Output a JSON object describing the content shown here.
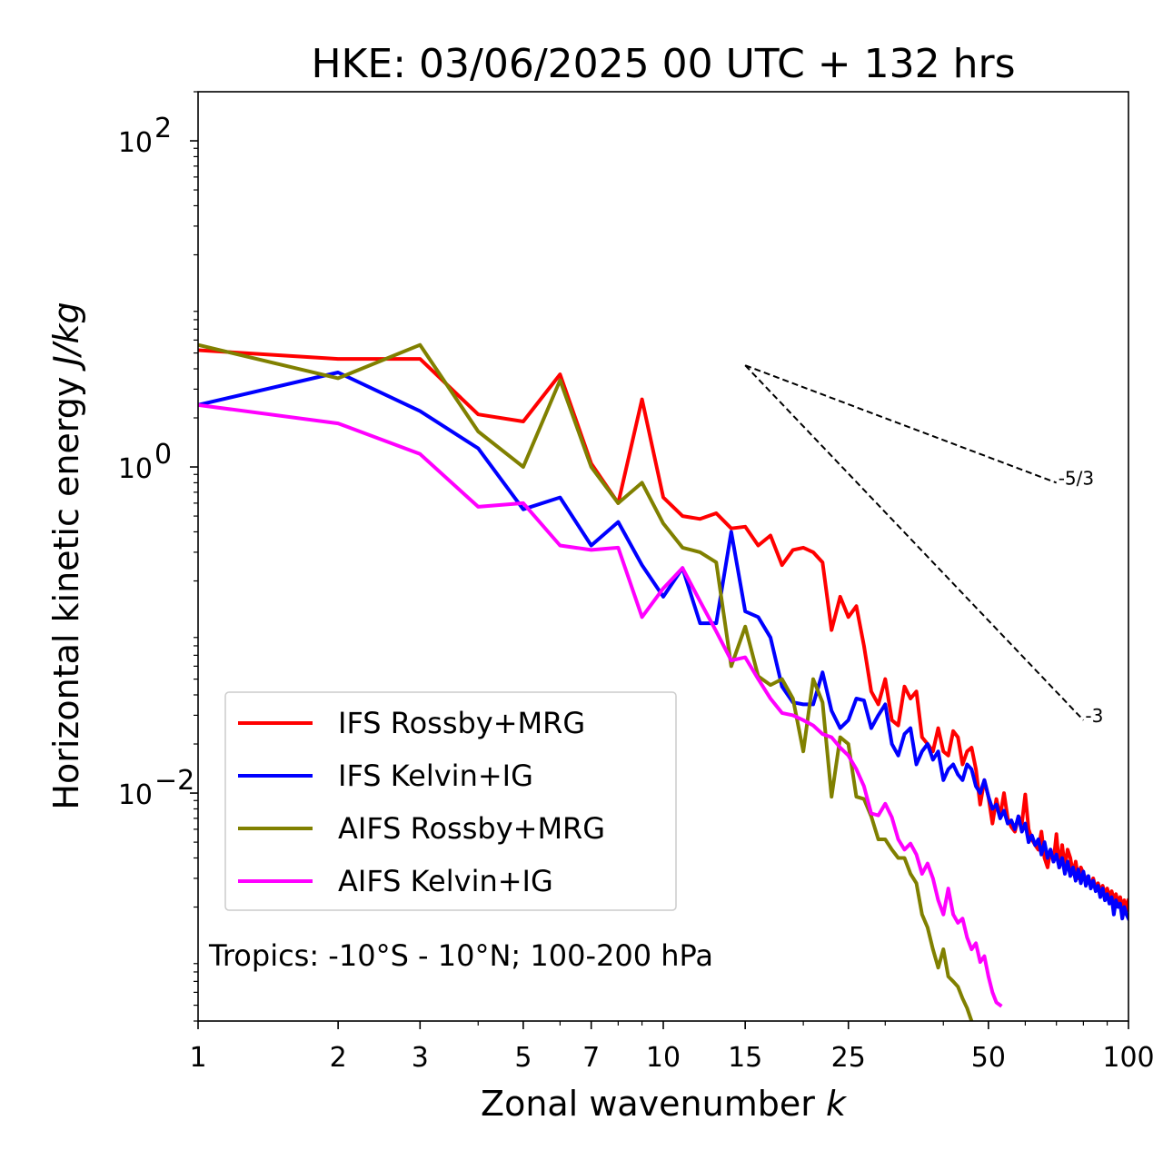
{
  "chart_data": {
    "type": "line",
    "title": "HKE: 03/06/2025 00 UTC + 132 hrs",
    "xlabel": "Zonal wavenumber k",
    "ylabel": "Horizontal kinetic energy J/kg",
    "xscale": "log",
    "yscale": "log",
    "xlim": [
      1,
      100
    ],
    "ylim": [
      0.0004,
      200
    ],
    "x_ticks": [
      1,
      2,
      3,
      5,
      7,
      10,
      15,
      25,
      50,
      100
    ],
    "x_tick_labels": [
      "1",
      "2",
      "3",
      "5",
      "7",
      "10",
      "15",
      "25",
      "50",
      "100"
    ],
    "y_ticks": [
      0.01,
      1,
      100
    ],
    "y_tick_labels": [
      "10",
      "10",
      "10"
    ],
    "y_tick_exponents": [
      "−2",
      "0",
      "2"
    ],
    "grid": false,
    "legend_position": "lower-left",
    "annotation": "Tropics: -10°S - 10°N; 100-200 hPa",
    "series": [
      {
        "name": "IFS Rossby+MRG",
        "color": "#ff0000",
        "x": [
          1,
          2,
          3,
          4,
          5,
          6,
          7,
          8,
          9,
          10,
          11,
          12,
          13,
          14,
          15,
          16,
          17,
          18,
          19,
          20,
          21,
          22,
          23,
          24,
          25,
          26,
          27,
          28,
          29,
          30,
          31,
          32,
          33,
          34,
          35,
          36,
          37,
          38,
          39,
          40,
          41,
          42,
          43,
          44,
          45,
          46,
          47,
          48,
          49,
          50,
          51,
          52,
          53,
          54,
          55,
          56,
          57,
          58,
          59,
          60,
          61,
          62,
          63,
          64,
          65,
          66,
          67,
          68,
          69,
          70,
          71,
          72,
          73,
          74,
          75,
          76,
          77,
          78,
          79,
          80,
          81,
          82,
          83,
          84,
          85,
          86,
          87,
          88,
          89,
          90,
          91,
          92,
          93,
          94,
          95,
          96,
          97,
          98,
          99,
          100
        ],
        "y": [
          5.2,
          4.6,
          4.6,
          2.1,
          1.9,
          3.7,
          1.05,
          0.6,
          2.6,
          0.65,
          0.5,
          0.48,
          0.52,
          0.42,
          0.43,
          0.33,
          0.38,
          0.25,
          0.31,
          0.32,
          0.3,
          0.26,
          0.1,
          0.16,
          0.12,
          0.14,
          0.08,
          0.042,
          0.035,
          0.05,
          0.028,
          0.026,
          0.045,
          0.038,
          0.042,
          0.022,
          0.02,
          0.018,
          0.025,
          0.018,
          0.017,
          0.024,
          0.022,
          0.015,
          0.018,
          0.019,
          0.014,
          0.0085,
          0.012,
          0.0095,
          0.0065,
          0.0092,
          0.0072,
          0.01,
          0.007,
          0.0062,
          0.0058,
          0.0072,
          0.0065,
          0.0098,
          0.006,
          0.0052,
          0.0048,
          0.0045,
          0.0058,
          0.004,
          0.0035,
          0.0045,
          0.0038,
          0.0056,
          0.0035,
          0.0048,
          0.0035,
          0.0045,
          0.004,
          0.0032,
          0.0038,
          0.003,
          0.0035,
          0.0032,
          0.003,
          0.0029,
          0.0027,
          0.003,
          0.0026,
          0.0028,
          0.0025,
          0.0027,
          0.0024,
          0.0026,
          0.0023,
          0.0025,
          0.0022,
          0.0024,
          0.0021,
          0.0023,
          0.002,
          0.0022,
          0.0019,
          0.0022
        ]
      },
      {
        "name": "IFS Kelvin+IG",
        "color": "#0000ff",
        "x": [
          1,
          2,
          3,
          4,
          5,
          6,
          7,
          8,
          9,
          10,
          11,
          12,
          13,
          14,
          15,
          16,
          17,
          18,
          19,
          20,
          21,
          22,
          23,
          24,
          25,
          26,
          27,
          28,
          29,
          30,
          31,
          32,
          33,
          34,
          35,
          36,
          37,
          38,
          39,
          40,
          41,
          42,
          43,
          44,
          45,
          46,
          47,
          48,
          49,
          50,
          51,
          52,
          53,
          54,
          55,
          56,
          57,
          58,
          59,
          60,
          61,
          62,
          63,
          64,
          65,
          66,
          67,
          68,
          69,
          70,
          71,
          72,
          73,
          74,
          75,
          76,
          77,
          78,
          79,
          80,
          81,
          82,
          83,
          84,
          85,
          86,
          87,
          88,
          89,
          90,
          91,
          92,
          93,
          94,
          95,
          96,
          97,
          98,
          99,
          100
        ],
        "y": [
          2.4,
          3.8,
          2.2,
          1.3,
          0.55,
          0.65,
          0.33,
          0.46,
          0.25,
          0.16,
          0.24,
          0.11,
          0.11,
          0.4,
          0.13,
          0.12,
          0.09,
          0.045,
          0.036,
          0.035,
          0.035,
          0.055,
          0.032,
          0.025,
          0.028,
          0.038,
          0.037,
          0.025,
          0.03,
          0.035,
          0.02,
          0.017,
          0.023,
          0.025,
          0.015,
          0.018,
          0.02,
          0.016,
          0.018,
          0.012,
          0.014,
          0.015,
          0.013,
          0.012,
          0.015,
          0.014,
          0.011,
          0.01,
          0.012,
          0.0095,
          0.008,
          0.0085,
          0.007,
          0.0078,
          0.0065,
          0.0068,
          0.006,
          0.0072,
          0.0058,
          0.0065,
          0.005,
          0.0055,
          0.0048,
          0.0052,
          0.0042,
          0.005,
          0.004,
          0.0045,
          0.0038,
          0.0042,
          0.0035,
          0.004,
          0.0032,
          0.0038,
          0.0031,
          0.0035,
          0.0029,
          0.0034,
          0.0028,
          0.0033,
          0.0027,
          0.0031,
          0.0026,
          0.0029,
          0.0025,
          0.0027,
          0.0023,
          0.0026,
          0.0022,
          0.0024,
          0.0021,
          0.0023,
          0.0018,
          0.0022,
          0.002,
          0.0021,
          0.0017,
          0.002,
          0.0018,
          0.0017
        ]
      },
      {
        "name": "AIFS Rossby+MRG",
        "color": "#808000",
        "x": [
          1,
          2,
          3,
          4,
          5,
          6,
          7,
          8,
          9,
          10,
          11,
          12,
          13,
          14,
          15,
          16,
          17,
          18,
          19,
          20,
          21,
          22,
          23,
          24,
          25,
          26,
          27,
          28,
          29,
          30,
          31,
          32,
          33,
          34,
          35,
          36,
          37,
          38,
          39,
          40,
          41,
          42,
          43,
          44,
          45,
          46
        ],
        "y": [
          5.6,
          3.5,
          5.6,
          1.65,
          1.0,
          3.4,
          1.0,
          0.6,
          0.8,
          0.45,
          0.32,
          0.3,
          0.26,
          0.06,
          0.105,
          0.052,
          0.046,
          0.05,
          0.038,
          0.018,
          0.05,
          0.036,
          0.0095,
          0.022,
          0.02,
          0.0095,
          0.0092,
          0.0072,
          0.0052,
          0.0052,
          0.0045,
          0.004,
          0.004,
          0.0032,
          0.0028,
          0.0018,
          0.0015,
          0.0011,
          0.00085,
          0.0011,
          0.00075,
          0.0007,
          0.00065,
          0.00055,
          0.00048,
          0.0004
        ]
      },
      {
        "name": "AIFS Kelvin+IG",
        "color": "#ff00ff",
        "x": [
          1,
          2,
          3,
          4,
          5,
          6,
          7,
          8,
          9,
          10,
          11,
          12,
          13,
          14,
          15,
          16,
          17,
          18,
          19,
          20,
          21,
          22,
          23,
          24,
          25,
          26,
          27,
          28,
          29,
          30,
          31,
          32,
          33,
          34,
          35,
          36,
          37,
          38,
          39,
          40,
          41,
          42,
          43,
          44,
          45,
          46,
          47,
          48,
          49,
          50,
          51,
          52,
          53
        ],
        "y": [
          2.4,
          1.85,
          1.2,
          0.57,
          0.6,
          0.33,
          0.31,
          0.32,
          0.12,
          0.18,
          0.24,
          0.15,
          0.098,
          0.065,
          0.068,
          0.05,
          0.038,
          0.031,
          0.03,
          0.028,
          0.026,
          0.023,
          0.022,
          0.019,
          0.017,
          0.014,
          0.011,
          0.0075,
          0.0073,
          0.0086,
          0.0071,
          0.0052,
          0.0045,
          0.0049,
          0.0042,
          0.0032,
          0.0037,
          0.003,
          0.0022,
          0.0018,
          0.0026,
          0.0018,
          0.0016,
          0.0017,
          0.0013,
          0.0011,
          0.0012,
          0.00092,
          0.001,
          0.00075,
          0.0006,
          0.00052,
          0.0005
        ]
      }
    ],
    "reference_lines": [
      {
        "label": "-5/3",
        "x": [
          15,
          70
        ],
        "y": [
          4.2,
          0.8
        ]
      },
      {
        "label": "-3",
        "x": [
          15,
          80
        ],
        "y": [
          4.2,
          0.028
        ]
      }
    ]
  }
}
